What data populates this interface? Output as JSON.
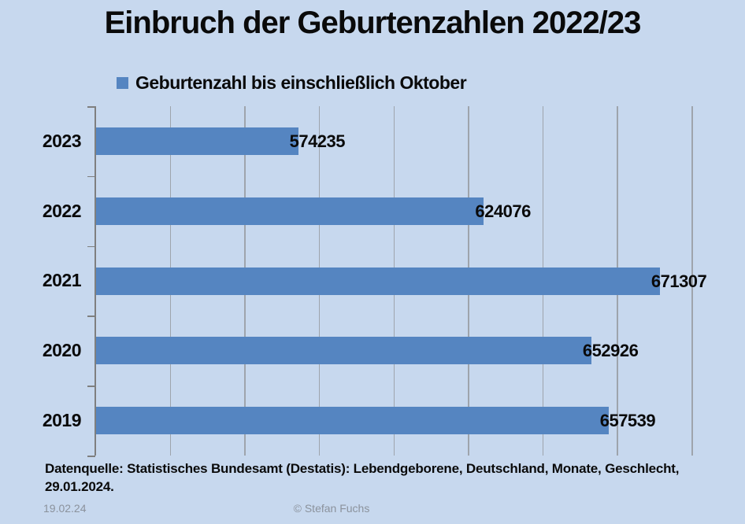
{
  "title": "Einbruch der Geburtenzahlen 2022/23",
  "legend": {
    "label": "Geburtenzahl bis einschließlich Oktober"
  },
  "chart_data": {
    "type": "bar",
    "orientation": "horizontal",
    "title": "Einbruch der Geburtenzahlen 2022/23",
    "legend_entries": [
      "Geburtenzahl bis einschließlich Oktober"
    ],
    "legend_position": "top",
    "categories": [
      "2023",
      "2022",
      "2021",
      "2020",
      "2019"
    ],
    "values": [
      574235,
      624076,
      671307,
      652926,
      657539
    ],
    "xlim": [
      520000,
      680000
    ],
    "gridline_step": 20000,
    "grid": true,
    "value_labels": "outside-end"
  },
  "footer": {
    "source_line1": "Datenquelle: Statistisches Bundesamt (Destatis): Lebendgeborene, Deutschland, Monate, Geschlecht,",
    "source_line2": "29.01.2024.",
    "date": "19.02.24",
    "credit": "© Stefan Fuchs"
  },
  "colors": {
    "background": "#c7d8ee",
    "bar": "#5585c1",
    "gridline": "#9ea4ac",
    "axis": "#7f7f7f",
    "text": "#0a0a0a",
    "muted": "#8b929c"
  }
}
